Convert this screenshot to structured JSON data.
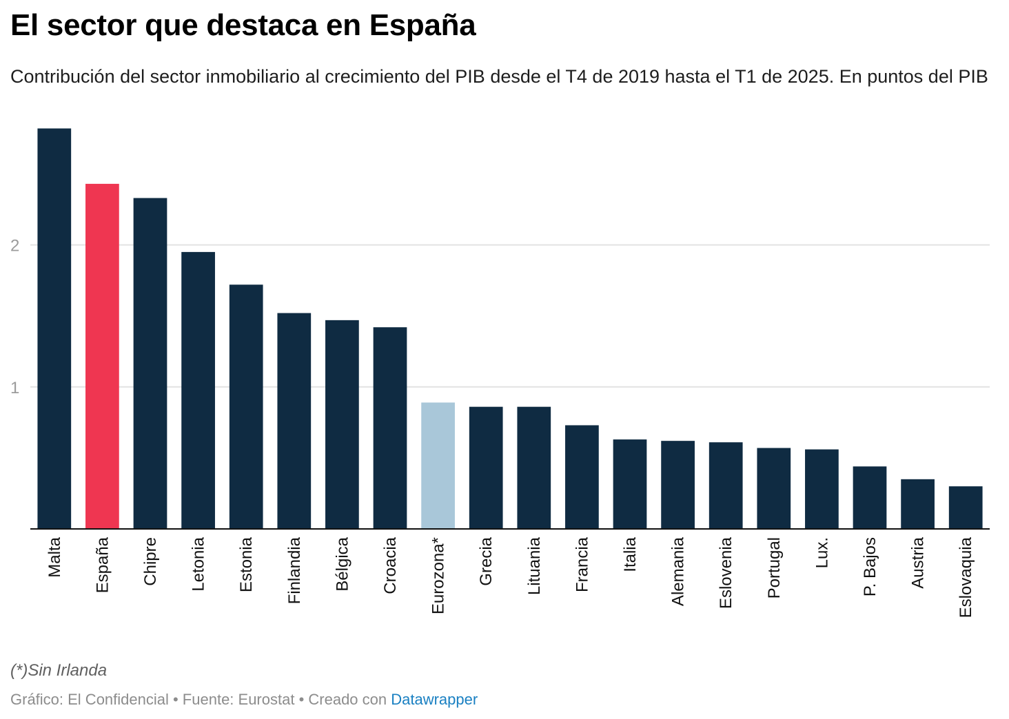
{
  "title": "El sector que destaca en España",
  "subtitle": "Contribución del sector inmobiliario al crecimiento del PIB desde el T4 de 2019 hasta el T1 de 2025. En puntos del PIB",
  "note": "(*)Sin Irlanda",
  "footer": {
    "credit": "Gráfico: El Confidencial • Fuente: Eurostat • Creado con ",
    "tool": "Datawrapper"
  },
  "colors": {
    "default": "#0f2b42",
    "highlight": "#ef3651",
    "reference": "#a9c7d9",
    "grid": "#e2e2e2",
    "tick": "#9b9b9b"
  },
  "chart_data": {
    "type": "bar",
    "categories": [
      "Malta",
      "España",
      "Chipre",
      "Letonia",
      "Estonia",
      "Finlandia",
      "Bélgica",
      "Croacia",
      "Eurozona*",
      "Grecia",
      "Lituania",
      "Francia",
      "Italia",
      "Alemania",
      "Eslovenia",
      "Portugal",
      "Lux.",
      "P. Bajos",
      "Austria",
      "Eslovaquia"
    ],
    "values": [
      2.82,
      2.43,
      2.33,
      1.95,
      1.72,
      1.52,
      1.47,
      1.42,
      0.89,
      0.86,
      0.86,
      0.73,
      0.63,
      0.62,
      0.61,
      0.57,
      0.56,
      0.44,
      0.35,
      0.3
    ],
    "highlight": [
      "España"
    ],
    "reference": [
      "Eurozona*"
    ],
    "yticks": [
      1,
      2
    ],
    "ylim": [
      0,
      2.9
    ],
    "grid": true,
    "label_orientation": "vertical"
  }
}
